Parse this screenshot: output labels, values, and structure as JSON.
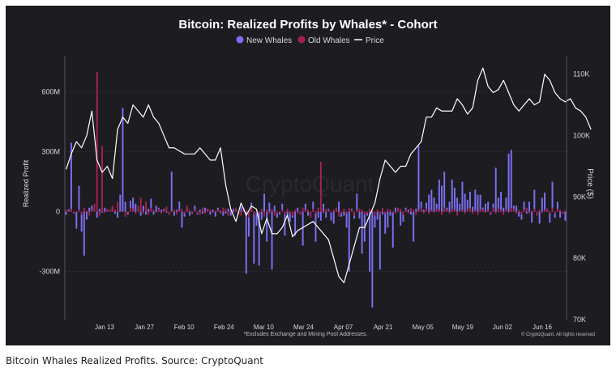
{
  "caption": "Bitcoin Whales Realized Profits. Source: CryptoQuant",
  "colors": {
    "background": "#1d1c21",
    "new_whales": "#7b6ff0",
    "old_whales": "#a3234f",
    "price": "#ffffff",
    "text": "#d8d8dc",
    "grid": "#3a3a40"
  },
  "chart_data": {
    "type": "bar",
    "title": "Bitcoin: Realized Profits by Whales* - Cohort",
    "footnote": "*Excludes Exchange and Mining Pool Addresses.",
    "copyright": "© CryptoQuant. All rights reserved",
    "watermark": "CryptoQuant",
    "legend": {
      "placement": "top-center",
      "items": [
        "New Whales",
        "Old Whales",
        "Price"
      ]
    },
    "xlabel": "",
    "ylabel": "Realized Profit",
    "y2label": "Price ($)",
    "yticks": [
      "-300M",
      "0",
      "300M",
      "600M"
    ],
    "y2ticks": [
      "70K",
      "80K",
      "90K",
      "100K",
      "110K"
    ],
    "xticks": [
      "Jan 13",
      "Jan 27",
      "Feb 10",
      "Feb 24",
      "Mar 10",
      "Mar 24",
      "Apr 07",
      "Apr 21",
      "May 05",
      "May 19",
      "Jun 02",
      "Jun 16"
    ],
    "ylim": [
      -540,
      780
    ],
    "y2lim": [
      70,
      113
    ],
    "grid": true,
    "series": [
      {
        "name": "New Whales",
        "axis": "left",
        "unit": "M",
        "values": [
          -15,
          12,
          345,
          -10,
          -85,
          130,
          -100,
          -220,
          -40,
          20,
          30,
          10,
          -30,
          15,
          -5,
          20,
          10,
          5,
          20,
          -10,
          -30,
          85,
          520,
          50,
          -15,
          55,
          70,
          40,
          10,
          -20,
          30,
          -15,
          15,
          65,
          -15,
          30,
          20,
          10,
          15,
          -5,
          -15,
          200,
          -20,
          10,
          50,
          -80,
          -25,
          20,
          -20,
          -10,
          30,
          -15,
          10,
          -10,
          20,
          15,
          -15,
          10,
          -25,
          20,
          5,
          -20,
          -10,
          15,
          -20,
          15,
          15,
          -15,
          25,
          20,
          -310,
          -125,
          45,
          -260,
          -70,
          -270,
          -40,
          90,
          -150,
          45,
          -290,
          30,
          -30,
          -15,
          40,
          -120,
          -20,
          -50,
          -30,
          -120,
          20,
          -10,
          -170,
          40,
          -20,
          -20,
          50,
          -150,
          -30,
          -45,
          40,
          -30,
          15,
          -45,
          -60,
          20,
          50,
          -25,
          -20,
          -80,
          -300,
          15,
          -35,
          90,
          -35,
          -210,
          -150,
          -20,
          -300,
          -480,
          -80,
          -40,
          -290,
          -15,
          -110,
          -80,
          -20,
          -180,
          20,
          15,
          -70,
          -50,
          20,
          10,
          -15,
          -150,
          15,
          330,
          50,
          10,
          45,
          85,
          110,
          70,
          40,
          160,
          130,
          200,
          20,
          50,
          160,
          120,
          70,
          40,
          150,
          90,
          60,
          100,
          25,
          110,
          85,
          85,
          20,
          40,
          50,
          -15,
          40,
          220,
          70,
          100,
          20,
          70,
          290,
          310,
          30,
          30,
          -25,
          -40,
          50,
          -10,
          50,
          -55,
          110,
          -20,
          -60,
          70,
          95,
          15,
          -55,
          150,
          -30,
          50,
          -30,
          -10,
          -45
        ]
      },
      {
        "name": "Old Whales",
        "axis": "left",
        "unit": "M",
        "values": [
          10,
          5,
          15,
          -8,
          0,
          10,
          -15,
          20,
          5,
          -20,
          10,
          40,
          700,
          -20,
          330,
          -5,
          15,
          10,
          30,
          10,
          50,
          0,
          0,
          -25,
          -5,
          20,
          15,
          -10,
          30,
          70,
          -10,
          50,
          -15,
          20,
          10,
          -5,
          15,
          -10,
          10,
          25,
          -15,
          5,
          10,
          -15,
          10,
          15,
          -10,
          30,
          10,
          -5,
          10,
          -10,
          -15,
          20,
          -10,
          15,
          10,
          -5,
          5,
          10,
          -10,
          20,
          15,
          -20,
          10,
          -5,
          20,
          -15,
          -20,
          15,
          10,
          -30,
          20,
          -15,
          -10,
          -5,
          15,
          -25,
          10,
          -10,
          15,
          -20,
          -10,
          -5,
          10,
          -15,
          15,
          -10,
          -20,
          10,
          -10,
          -15,
          20,
          10,
          10,
          -30,
          15,
          -10,
          20,
          250,
          -10,
          15,
          10,
          -5,
          10,
          20,
          -25,
          -10,
          15,
          -10,
          20,
          10,
          -20,
          10,
          15,
          10,
          -15,
          -10,
          15,
          10,
          -20,
          10,
          -15,
          20,
          -10,
          15,
          10,
          -5,
          -10,
          20,
          15,
          -15,
          10,
          -10,
          20,
          10,
          -15,
          10,
          20,
          -10,
          15,
          -10,
          10,
          -5,
          15,
          10,
          -15,
          20,
          10,
          -10,
          15,
          10,
          -20,
          5,
          10,
          -10,
          15,
          20,
          -10,
          10,
          -15,
          10,
          15,
          -5,
          10,
          -10,
          20,
          -10,
          15,
          10,
          -15,
          10,
          -5,
          20,
          15,
          -10,
          10,
          -15,
          10,
          20,
          -10,
          5,
          15,
          -20,
          10,
          -5,
          10,
          15,
          -10,
          20,
          -10,
          15,
          10,
          -10,
          5
        ]
      },
      {
        "name": "Price",
        "axis": "right",
        "unit": "K",
        "x": [
          0,
          2,
          4,
          6,
          8,
          10,
          12,
          14,
          16,
          18,
          20,
          22,
          24,
          26,
          28,
          30,
          32,
          34,
          36,
          38,
          40,
          42,
          44,
          46,
          48,
          50,
          52,
          54,
          56,
          58,
          60,
          62,
          64,
          66,
          68,
          70,
          72,
          74,
          76,
          78,
          80,
          82,
          84,
          86,
          88,
          90,
          92,
          94,
          96,
          98,
          100,
          102,
          104,
          106,
          108,
          110,
          112,
          114,
          116,
          118,
          120,
          122,
          124,
          126,
          128,
          130,
          132,
          134,
          136,
          138,
          140,
          142,
          144,
          146,
          148,
          150,
          152,
          154,
          156,
          158,
          160,
          162,
          164,
          166,
          168,
          170,
          172,
          174,
          176,
          178,
          180,
          182,
          184,
          186,
          188,
          190,
          192,
          194,
          196,
          198,
          200,
          202,
          204
        ],
        "values": [
          94.5,
          97,
          99,
          98,
          100,
          104,
          96,
          94,
          95,
          93,
          101,
          103,
          102,
          105,
          104,
          103,
          105,
          103,
          102,
          100,
          98,
          98,
          97.5,
          97,
          97,
          97,
          98,
          97,
          96,
          96,
          98,
          92,
          88,
          86,
          89,
          87,
          88.5,
          88,
          84,
          86.5,
          84,
          84,
          85,
          87,
          83.5,
          84.5,
          85,
          85.5,
          86,
          85,
          84,
          83,
          80,
          77,
          76,
          79,
          82,
          85,
          85,
          87,
          89,
          93,
          96,
          95,
          94,
          95,
          95,
          97,
          98,
          99,
          103,
          103,
          104.5,
          104,
          104,
          104,
          106,
          105,
          103.5,
          104.5,
          109,
          111,
          108,
          107,
          107.5,
          109,
          107,
          105,
          104,
          105,
          106,
          105,
          105.5,
          110,
          109,
          107,
          106,
          105.5,
          106,
          104.5,
          104,
          103,
          101
        ]
      }
    ]
  }
}
